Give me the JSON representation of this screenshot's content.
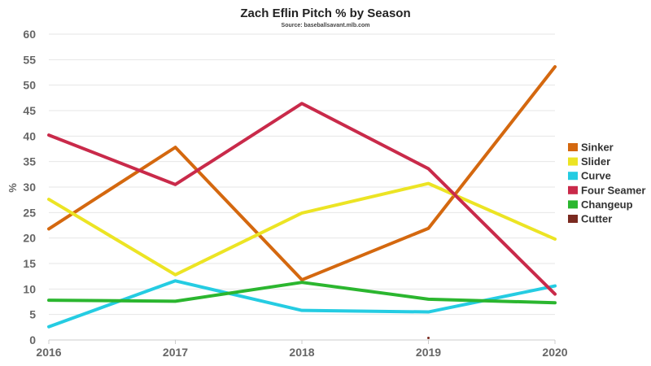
{
  "chart_data": {
    "type": "line",
    "title": "Zach Eflin Pitch % by Season",
    "subtitle": "Source: baseballsavant.mlb.com",
    "xlabel": "",
    "ylabel": "%",
    "x": [
      "2016",
      "2017",
      "2018",
      "2019",
      "2020"
    ],
    "ylim": [
      0,
      60
    ],
    "yticks": [
      0,
      5,
      10,
      15,
      20,
      25,
      30,
      35,
      40,
      45,
      50,
      55,
      60
    ],
    "grid": true,
    "legend": "right",
    "series": [
      {
        "name": "Sinker",
        "color": "#d4680f",
        "values": [
          21.8,
          37.8,
          11.8,
          21.9,
          53.6
        ]
      },
      {
        "name": "Slider",
        "color": "#ece424",
        "values": [
          27.6,
          12.8,
          24.9,
          30.7,
          19.8
        ]
      },
      {
        "name": "Curve",
        "color": "#25cce2",
        "values": [
          2.6,
          11.6,
          5.8,
          5.5,
          10.6
        ]
      },
      {
        "name": "Four Seamer",
        "color": "#c92a4a",
        "values": [
          40.2,
          30.5,
          46.4,
          33.6,
          9.0
        ]
      },
      {
        "name": "Changeup",
        "color": "#2bb62f",
        "values": [
          7.8,
          7.6,
          11.3,
          8.0,
          7.3
        ]
      },
      {
        "name": "Cutter",
        "color": "#7a2a20",
        "values": [
          null,
          null,
          null,
          0.4,
          null
        ]
      }
    ]
  }
}
